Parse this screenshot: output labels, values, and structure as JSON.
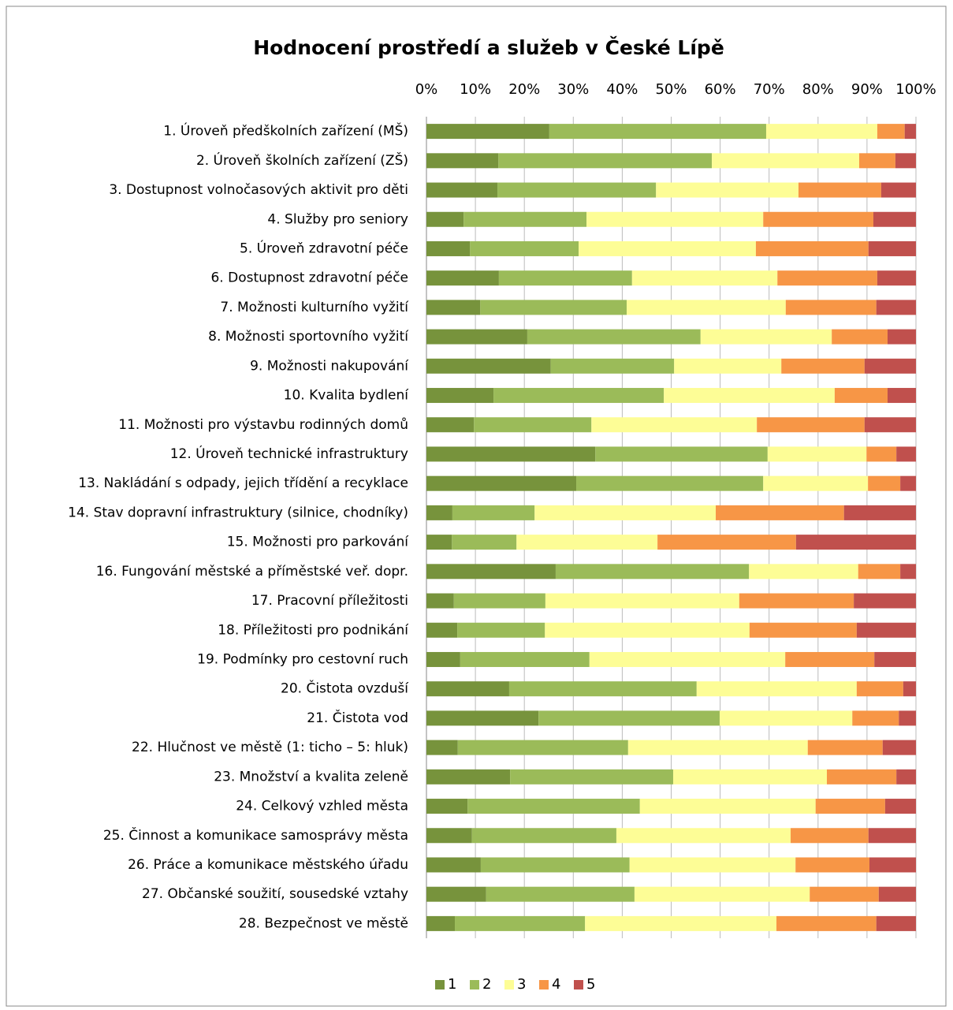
{
  "chart_data": {
    "type": "stacked_barh",
    "title": "Hodnocení prostředí a služeb v České Lípě",
    "categories": [
      "1. Úroveň předškolních zařízení (MŠ)",
      "2. Úroveň školních zařízení (ZŠ)",
      "3. Dostupnost volnočasových aktivit pro děti",
      "4. Služby pro seniory",
      "5. Úroveň zdravotní péče",
      "6. Dostupnost zdravotní péče",
      "7. Možnosti kulturního vyžití",
      "8. Možnosti sportovního vyžití",
      "9. Možnosti nakupování",
      "10. Kvalita bydlení",
      "11. Možnosti pro výstavbu rodinných domů",
      "12. Úroveň technické infrastruktury",
      "13. Nakládání s odpady, jejich třídění a recyklace",
      "14. Stav dopravní infrastruktury (silnice, chodníky)",
      "15. Možnosti pro parkování",
      "16. Fungování městské a příměstské veř. dopr.",
      "17. Pracovní příležitosti",
      "18. Příležitosti pro podnikání",
      "19. Podmínky pro cestovní ruch",
      "20. Čistota ovzduší",
      "21. Čistota vod",
      "22. Hlučnost ve městě (1: ticho – 5: hluk)",
      "23. Množství a kvalita zeleně",
      "24. Celkový vzhled města",
      "25. Činnost a komunikace samosprávy města",
      "26. Práce a komunikace městského úřadu",
      "27. Občanské soužití, sousedské vztahy",
      "28. Bezpečnost ve městě"
    ],
    "series": [
      {
        "name": "1",
        "color": "#77933c",
        "values": [
          25.1,
          14.7,
          14.5,
          7.6,
          8.9,
          14.8,
          11.0,
          20.6,
          25.4,
          13.7,
          9.7,
          34.5,
          30.6,
          5.3,
          5.2,
          26.4,
          5.6,
          6.3,
          6.9,
          16.9,
          22.9,
          6.4,
          17.1,
          8.4,
          9.3,
          11.1,
          12.2,
          5.8
        ]
      },
      {
        "name": "2",
        "color": "#9bbb59",
        "values": [
          44.3,
          43.6,
          32.4,
          25.1,
          22.2,
          27.2,
          29.9,
          35.4,
          25.2,
          34.8,
          24.0,
          35.2,
          38.2,
          16.8,
          13.2,
          39.5,
          18.7,
          17.9,
          26.4,
          38.3,
          37.0,
          34.8,
          33.3,
          35.2,
          29.5,
          30.4,
          30.3,
          26.6
        ]
      },
      {
        "name": "3",
        "color": "#fdfd96",
        "values": [
          22.7,
          30.1,
          29.1,
          36.1,
          36.2,
          29.7,
          32.5,
          26.8,
          21.9,
          34.9,
          33.8,
          20.2,
          21.4,
          37.0,
          28.8,
          22.3,
          39.6,
          41.8,
          40.0,
          32.7,
          27.1,
          36.7,
          31.4,
          35.9,
          35.6,
          33.9,
          35.8,
          39.1
        ]
      },
      {
        "name": "4",
        "color": "#f79646",
        "values": [
          5.6,
          7.4,
          16.9,
          22.5,
          23.0,
          20.4,
          18.5,
          11.4,
          17.0,
          10.8,
          22.0,
          6.1,
          6.6,
          26.2,
          28.3,
          8.6,
          23.4,
          21.9,
          18.2,
          9.5,
          9.5,
          15.3,
          14.2,
          14.2,
          15.9,
          15.1,
          14.1,
          20.4
        ]
      },
      {
        "name": "5",
        "color": "#c0504d",
        "values": [
          2.3,
          4.2,
          7.1,
          8.7,
          9.7,
          7.9,
          8.1,
          5.8,
          10.5,
          5.8,
          10.5,
          4.0,
          3.2,
          14.7,
          24.5,
          3.2,
          12.7,
          12.1,
          8.5,
          2.6,
          3.5,
          6.8,
          4.0,
          6.3,
          9.7,
          9.5,
          7.6,
          8.1
        ]
      }
    ],
    "xlim": [
      0,
      100
    ],
    "xticks": [
      {
        "value": 0,
        "label": "0%"
      },
      {
        "value": 10,
        "label": "10%"
      },
      {
        "value": 20,
        "label": "20%"
      },
      {
        "value": 30,
        "label": "30%"
      },
      {
        "value": 40,
        "label": "40%"
      },
      {
        "value": 50,
        "label": "50%"
      },
      {
        "value": 60,
        "label": "60%"
      },
      {
        "value": 70,
        "label": "70%"
      },
      {
        "value": 80,
        "label": "80%"
      },
      {
        "value": 90,
        "label": "90%"
      },
      {
        "value": 100,
        "label": "100%"
      }
    ],
    "grid": true,
    "legend": "bottom"
  }
}
